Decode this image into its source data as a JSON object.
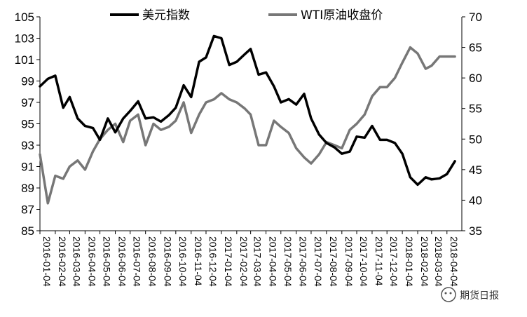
{
  "chart_data": {
    "type": "line",
    "title": "",
    "xlabel": "",
    "ylabel": "",
    "ylim": [
      85,
      105
    ],
    "y2lim": [
      35,
      70
    ],
    "yticks": [
      "85",
      "87",
      "89",
      "91",
      "93",
      "95",
      "97",
      "99",
      "101",
      "103",
      "105"
    ],
    "y2ticks": [
      "35",
      "40",
      "45",
      "50",
      "55",
      "60",
      "65",
      "70"
    ],
    "x_tick_labels": [
      "2016-01-04",
      "2016-02-04",
      "2016-03-04",
      "2016-04-04",
      "2016-05-04",
      "2016-06-04",
      "2016-07-04",
      "2016-08-04",
      "2016-09-04",
      "2016-10-04",
      "2016-11-04",
      "2016-12-04",
      "2017-01-04",
      "2017-02-04",
      "2017-03-04",
      "2017-04-04",
      "2017-05-04",
      "2017-06-04",
      "2017-07-04",
      "2017-08-04",
      "2017-09-04",
      "2017-10-04",
      "2017-11-04",
      "2017-12-04",
      "2018-01-04",
      "2018-02-04",
      "2018-03-04",
      "2018-04-04"
    ],
    "legend_position": "top",
    "grid": false,
    "series": [
      {
        "name": "美元指数",
        "axis": "left",
        "color": "#000000",
        "x": [
          "2016-01-04",
          "2016-01-20",
          "2016-02-04",
          "2016-02-20",
          "2016-03-04",
          "2016-03-20",
          "2016-04-04",
          "2016-04-20",
          "2016-05-04",
          "2016-05-20",
          "2016-06-04",
          "2016-06-20",
          "2016-07-04",
          "2016-07-20",
          "2016-08-04",
          "2016-08-20",
          "2016-09-04",
          "2016-09-20",
          "2016-10-04",
          "2016-10-20",
          "2016-11-04",
          "2016-11-20",
          "2016-12-04",
          "2016-12-20",
          "2017-01-04",
          "2017-01-20",
          "2017-02-04",
          "2017-02-20",
          "2017-03-04",
          "2017-03-20",
          "2017-04-04",
          "2017-04-20",
          "2017-05-04",
          "2017-05-20",
          "2017-06-04",
          "2017-06-20",
          "2017-07-04",
          "2017-07-20",
          "2017-08-04",
          "2017-08-20",
          "2017-09-04",
          "2017-09-20",
          "2017-10-04",
          "2017-10-20",
          "2017-11-04",
          "2017-11-20",
          "2017-12-04",
          "2017-12-20",
          "2018-01-04",
          "2018-01-20",
          "2018-02-04",
          "2018-02-20",
          "2018-03-04",
          "2018-03-20",
          "2018-04-04",
          "2018-04-20"
        ],
        "values": [
          98.5,
          99.2,
          99.5,
          96.5,
          97.5,
          95.5,
          94.8,
          94.6,
          93.5,
          95.5,
          94.2,
          95.5,
          96.2,
          97.1,
          95.5,
          95.6,
          95.2,
          95.8,
          96.5,
          98.6,
          97.5,
          100.8,
          101.2,
          103.2,
          103.0,
          100.5,
          100.8,
          101.5,
          102.0,
          99.6,
          99.8,
          98.5,
          97.0,
          97.3,
          96.8,
          97.8,
          95.5,
          94.0,
          93.2,
          92.8,
          92.2,
          92.4,
          93.8,
          93.7,
          94.8,
          93.5,
          93.5,
          93.2,
          92.2,
          90.0,
          89.3,
          90.0,
          89.8,
          89.9,
          90.3,
          91.5
        ]
      },
      {
        "name": "WTI原油收盘价",
        "axis": "right",
        "color": "#777777",
        "x": [
          "2016-01-04",
          "2016-01-20",
          "2016-02-04",
          "2016-02-20",
          "2016-03-04",
          "2016-03-20",
          "2016-04-04",
          "2016-04-20",
          "2016-05-04",
          "2016-05-20",
          "2016-06-04",
          "2016-06-20",
          "2016-07-04",
          "2016-07-20",
          "2016-08-04",
          "2016-08-20",
          "2016-09-04",
          "2016-09-20",
          "2016-10-04",
          "2016-10-20",
          "2016-11-04",
          "2016-11-20",
          "2016-12-04",
          "2016-12-20",
          "2017-01-04",
          "2017-01-20",
          "2017-02-04",
          "2017-02-20",
          "2017-03-04",
          "2017-03-20",
          "2017-04-04",
          "2017-04-20",
          "2017-05-04",
          "2017-05-20",
          "2017-06-04",
          "2017-06-20",
          "2017-07-04",
          "2017-07-20",
          "2017-08-04",
          "2017-08-20",
          "2017-09-04",
          "2017-09-20",
          "2017-10-04",
          "2017-10-20",
          "2017-11-04",
          "2017-11-20",
          "2017-12-04",
          "2017-12-20",
          "2018-01-04",
          "2018-01-20",
          "2018-02-04",
          "2018-02-20",
          "2018-03-04",
          "2018-03-20",
          "2018-04-04",
          "2018-04-20"
        ],
        "values": [
          47.5,
          39.5,
          44.0,
          43.5,
          45.5,
          46.5,
          45.0,
          48.0,
          50.0,
          51.5,
          52.5,
          49.5,
          53.0,
          54.0,
          49.0,
          52.5,
          51.5,
          52.0,
          53.0,
          56.0,
          51.0,
          54.0,
          56.0,
          56.5,
          57.5,
          56.5,
          56.0,
          55.0,
          54.0,
          49.0,
          49.0,
          53.0,
          52.0,
          51.0,
          48.5,
          47.0,
          46.0,
          47.5,
          49.5,
          49.0,
          48.5,
          51.5,
          52.5,
          54.0,
          57.0,
          58.5,
          58.5,
          60.0,
          62.5,
          65.0,
          64.0,
          61.5,
          62.0,
          63.5,
          63.5,
          63.5
        ]
      }
    ]
  },
  "watermark": {
    "text": "期货日报"
  }
}
